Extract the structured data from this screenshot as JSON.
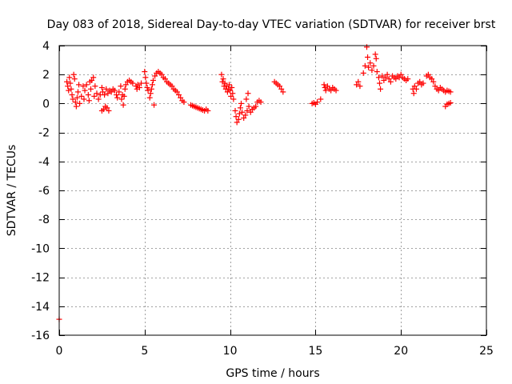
{
  "chart_data": {
    "type": "scatter",
    "title": "Day 083 of 2018, Sidereal Day-to-day VTEC variation (SDTVAR) for receiver brst",
    "xlabel": "GPS time / hours",
    "ylabel": "SDTVAR / TECUs",
    "xlim": [
      0,
      25
    ],
    "ylim": [
      -16,
      4
    ],
    "xticks": [
      0,
      5,
      10,
      15,
      20,
      25
    ],
    "yticks": [
      -16,
      -14,
      -12,
      -10,
      -8,
      -6,
      -4,
      -2,
      0,
      2,
      4
    ],
    "grid": true,
    "marker": "+",
    "colors": {
      "series": "#ff0000",
      "grid": "#a0a0a0",
      "axis": "#000000"
    },
    "series": [
      {
        "name": "SDTVAR",
        "points": [
          [
            0.0,
            -14.9
          ],
          [
            0.45,
            1.5
          ],
          [
            0.5,
            1.2
          ],
          [
            0.55,
            0.9
          ],
          [
            0.6,
            1.8
          ],
          [
            0.65,
            1.4
          ],
          [
            0.7,
            1.0
          ],
          [
            0.75,
            0.6
          ],
          [
            0.8,
            0.3
          ],
          [
            0.85,
            2.0
          ],
          [
            0.9,
            1.7
          ],
          [
            0.95,
            0.1
          ],
          [
            1.0,
            -0.2
          ],
          [
            1.05,
            0.4
          ],
          [
            1.1,
            0.8
          ],
          [
            1.15,
            1.3
          ],
          [
            1.2,
            0.0
          ],
          [
            1.3,
            0.5
          ],
          [
            1.4,
            1.2
          ],
          [
            1.45,
            0.3
          ],
          [
            1.5,
            0.9
          ],
          [
            1.6,
            1.3
          ],
          [
            1.7,
            0.6
          ],
          [
            1.75,
            0.2
          ],
          [
            1.8,
            1.5
          ],
          [
            1.85,
            1.0
          ],
          [
            1.9,
            1.6
          ],
          [
            2.0,
            1.8
          ],
          [
            2.05,
            0.5
          ],
          [
            2.1,
            1.2
          ],
          [
            2.2,
            0.7
          ],
          [
            2.3,
            0.3
          ],
          [
            2.4,
            0.6
          ],
          [
            2.5,
            1.1
          ],
          [
            2.5,
            -0.5
          ],
          [
            2.6,
            -0.4
          ],
          [
            2.7,
            -0.2
          ],
          [
            2.8,
            -0.3
          ],
          [
            2.9,
            -0.5
          ],
          [
            2.55,
            0.8
          ],
          [
            2.65,
            0.6
          ],
          [
            2.75,
            1.0
          ],
          [
            2.85,
            0.7
          ],
          [
            2.95,
            0.9
          ],
          [
            3.05,
            0.8
          ],
          [
            3.15,
            1.0
          ],
          [
            3.25,
            0.9
          ],
          [
            3.35,
            0.6
          ],
          [
            3.4,
            0.4
          ],
          [
            3.5,
            0.8
          ],
          [
            3.6,
            1.2
          ],
          [
            3.65,
            0.3
          ],
          [
            3.7,
            0.6
          ],
          [
            3.75,
            -0.1
          ],
          [
            3.8,
            0.5
          ],
          [
            3.85,
            1.0
          ],
          [
            3.9,
            1.3
          ],
          [
            4.0,
            1.5
          ],
          [
            4.1,
            1.6
          ],
          [
            4.2,
            1.5
          ],
          [
            4.3,
            1.4
          ],
          [
            4.5,
            1.2
          ],
          [
            4.55,
            1.0
          ],
          [
            4.6,
            1.3
          ],
          [
            4.7,
            1.1
          ],
          [
            4.8,
            1.4
          ],
          [
            5.0,
            2.2
          ],
          [
            5.05,
            1.8
          ],
          [
            5.1,
            1.4
          ],
          [
            5.15,
            1.1
          ],
          [
            5.2,
            0.9
          ],
          [
            5.3,
            0.4
          ],
          [
            5.35,
            0.7
          ],
          [
            5.4,
            1.0
          ],
          [
            5.45,
            1.3
          ],
          [
            5.5,
            1.6
          ],
          [
            5.55,
            -0.1
          ],
          [
            5.6,
            1.9
          ],
          [
            5.7,
            2.1
          ],
          [
            5.8,
            2.2
          ],
          [
            5.9,
            2.1
          ],
          [
            6.0,
            2.0
          ],
          [
            6.1,
            1.8
          ],
          [
            6.2,
            1.7
          ],
          [
            6.3,
            1.5
          ],
          [
            6.4,
            1.4
          ],
          [
            6.5,
            1.3
          ],
          [
            6.6,
            1.2
          ],
          [
            6.7,
            1.0
          ],
          [
            6.8,
            0.9
          ],
          [
            6.9,
            0.8
          ],
          [
            7.0,
            0.6
          ],
          [
            7.1,
            0.4
          ],
          [
            7.2,
            0.2
          ],
          [
            7.3,
            0.1
          ],
          [
            7.7,
            -0.1
          ],
          [
            7.8,
            -0.15
          ],
          [
            7.9,
            -0.2
          ],
          [
            8.0,
            -0.25
          ],
          [
            8.1,
            -0.3
          ],
          [
            8.2,
            -0.35
          ],
          [
            8.3,
            -0.4
          ],
          [
            8.4,
            -0.45
          ],
          [
            8.5,
            -0.5
          ],
          [
            8.6,
            -0.4
          ],
          [
            8.7,
            -0.5
          ],
          [
            9.5,
            2.0
          ],
          [
            9.55,
            1.5
          ],
          [
            9.6,
            1.7
          ],
          [
            9.65,
            1.2
          ],
          [
            9.7,
            1.4
          ],
          [
            9.75,
            1.0
          ],
          [
            9.8,
            1.2
          ],
          [
            9.85,
            0.8
          ],
          [
            9.9,
            1.0
          ],
          [
            9.95,
            1.3
          ],
          [
            10.0,
            0.9
          ],
          [
            10.05,
            0.5
          ],
          [
            10.1,
            1.1
          ],
          [
            10.15,
            0.7
          ],
          [
            10.2,
            0.3
          ],
          [
            10.3,
            -0.5
          ],
          [
            10.35,
            -0.9
          ],
          [
            10.4,
            -1.3
          ],
          [
            10.5,
            -1.1
          ],
          [
            10.55,
            -0.7
          ],
          [
            10.6,
            -0.3
          ],
          [
            10.65,
            0.0
          ],
          [
            10.7,
            -0.6
          ],
          [
            10.8,
            -1.0
          ],
          [
            10.9,
            -0.8
          ],
          [
            10.95,
            0.3
          ],
          [
            11.0,
            -0.5
          ],
          [
            11.05,
            0.7
          ],
          [
            11.1,
            -0.2
          ],
          [
            11.2,
            -0.6
          ],
          [
            11.3,
            -0.4
          ],
          [
            11.4,
            -0.3
          ],
          [
            11.5,
            -0.2
          ],
          [
            11.6,
            0.1
          ],
          [
            11.7,
            0.2
          ],
          [
            11.8,
            0.1
          ],
          [
            12.6,
            1.5
          ],
          [
            12.7,
            1.4
          ],
          [
            12.8,
            1.3
          ],
          [
            12.9,
            1.2
          ],
          [
            13.0,
            1.0
          ],
          [
            13.1,
            0.8
          ],
          [
            14.8,
            0.0
          ],
          [
            14.9,
            0.05
          ],
          [
            15.0,
            -0.05
          ],
          [
            15.1,
            0.1
          ],
          [
            15.3,
            0.3
          ],
          [
            15.5,
            1.3
          ],
          [
            15.55,
            1.1
          ],
          [
            15.6,
            0.9
          ],
          [
            15.7,
            1.2
          ],
          [
            15.8,
            1.0
          ],
          [
            15.9,
            0.9
          ],
          [
            16.0,
            1.1
          ],
          [
            16.1,
            1.0
          ],
          [
            16.2,
            0.9
          ],
          [
            17.4,
            1.3
          ],
          [
            17.5,
            1.5
          ],
          [
            17.6,
            1.2
          ],
          [
            17.8,
            2.1
          ],
          [
            17.9,
            2.6
          ],
          [
            18.0,
            3.9
          ],
          [
            18.05,
            3.2
          ],
          [
            18.1,
            2.5
          ],
          [
            18.2,
            2.8
          ],
          [
            18.3,
            2.3
          ],
          [
            18.4,
            2.6
          ],
          [
            18.5,
            3.4
          ],
          [
            18.55,
            3.1
          ],
          [
            18.6,
            2.2
          ],
          [
            18.7,
            1.8
          ],
          [
            18.75,
            1.4
          ],
          [
            18.8,
            1.0
          ],
          [
            18.9,
            1.9
          ],
          [
            19.0,
            1.6
          ],
          [
            19.1,
            1.8
          ],
          [
            19.2,
            2.0
          ],
          [
            19.3,
            1.7
          ],
          [
            19.4,
            1.5
          ],
          [
            19.5,
            1.9
          ],
          [
            19.6,
            1.8
          ],
          [
            19.7,
            1.7
          ],
          [
            19.8,
            1.9
          ],
          [
            19.9,
            1.8
          ],
          [
            20.0,
            2.0
          ],
          [
            20.1,
            1.8
          ],
          [
            20.2,
            1.7
          ],
          [
            20.3,
            1.6
          ],
          [
            20.4,
            1.7
          ],
          [
            20.7,
            1.0
          ],
          [
            20.75,
            0.7
          ],
          [
            20.8,
            1.2
          ],
          [
            20.9,
            1.0
          ],
          [
            21.0,
            1.4
          ],
          [
            21.1,
            1.5
          ],
          [
            21.2,
            1.3
          ],
          [
            21.3,
            1.4
          ],
          [
            21.5,
            1.9
          ],
          [
            21.6,
            2.0
          ],
          [
            21.7,
            1.8
          ],
          [
            21.8,
            1.7
          ],
          [
            21.9,
            1.5
          ],
          [
            22.0,
            1.2
          ],
          [
            22.1,
            1.0
          ],
          [
            22.2,
            0.9
          ],
          [
            22.3,
            1.1
          ],
          [
            22.4,
            1.0
          ],
          [
            22.5,
            0.9
          ],
          [
            22.6,
            0.8
          ],
          [
            22.7,
            0.9
          ],
          [
            22.8,
            0.85
          ],
          [
            22.9,
            0.8
          ],
          [
            22.6,
            -0.2
          ],
          [
            22.7,
            -0.05
          ],
          [
            22.8,
            0.0
          ],
          [
            22.9,
            0.05
          ]
        ]
      }
    ]
  }
}
